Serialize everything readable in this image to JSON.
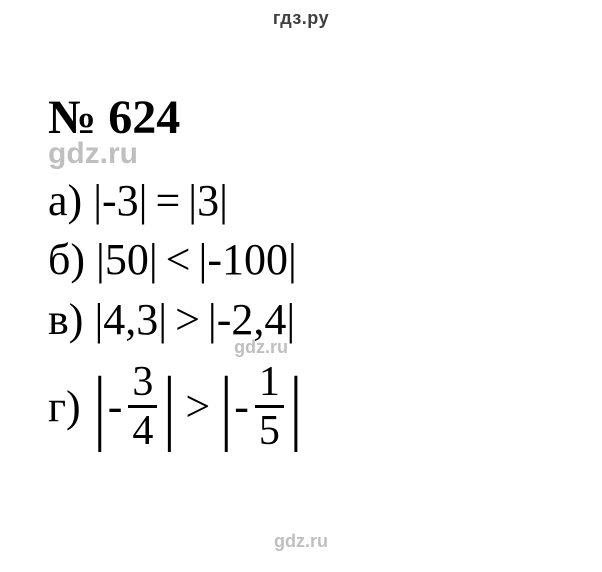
{
  "brand_header": "гдз.ру",
  "title": "№ 624",
  "watermark_upper": "gdz.ru",
  "watermark_inline": "gdz.ru",
  "watermark_lower": "gdz.ru",
  "lines": {
    "a": {
      "label": "а)",
      "lhs_inner": "-3",
      "operator": "=",
      "rhs_inner": "3"
    },
    "b": {
      "label": "б)",
      "lhs_inner": "50",
      "operator": "<",
      "rhs_inner": "-100"
    },
    "v": {
      "label": "в)",
      "lhs_inner": "4,3",
      "operator": ">",
      "rhs_inner": "-2,4"
    },
    "g": {
      "label": "г)",
      "lhs_sign": "-",
      "lhs_num": "3",
      "lhs_den": "4",
      "operator": ">",
      "rhs_sign": "-",
      "rhs_num": "1",
      "rhs_den": "5"
    }
  },
  "style": {
    "text_color": "#000000",
    "watermark_color": "#bfbfbf",
    "background_color": "#ffffff",
    "title_fontsize": 48,
    "line_fontsize": 44,
    "frac_fontsize": 42,
    "watermark_header_fontsize": 18,
    "watermark_upper_fontsize": 30,
    "font_family_main": "Times New Roman, serif",
    "font_family_watermark": "Arial, sans-serif"
  }
}
